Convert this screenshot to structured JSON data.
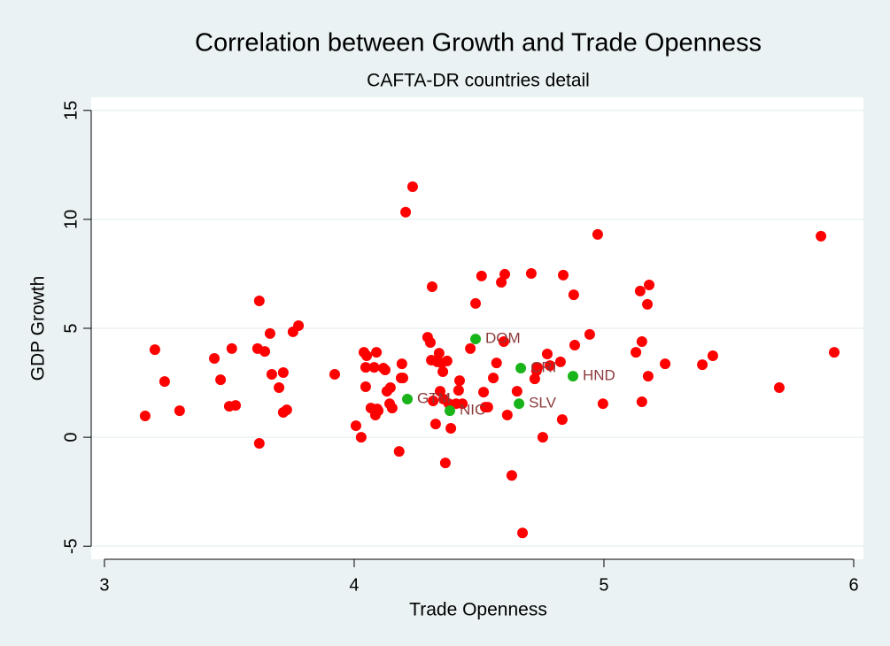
{
  "chart_data": {
    "type": "scatter",
    "title": "Correlation between Growth and Trade Openness",
    "subtitle": "CAFTA-DR countries detail",
    "x_label": "Trade Openness",
    "y_label": "GDP Growth",
    "xlim": [
      2.947,
      6.039
    ],
    "ylim": [
      -5.6,
      15.6
    ],
    "xticks": [
      3,
      4,
      5,
      6
    ],
    "yticks": [
      -5,
      0,
      5,
      10,
      15
    ],
    "grid": true,
    "series": [
      {
        "color": "#ff0000",
        "x": [
          3.163,
          3.202,
          3.241,
          3.301,
          3.44,
          3.465,
          3.5,
          3.51,
          3.525,
          3.613,
          3.62,
          3.62,
          3.642,
          3.663,
          3.67,
          3.699,
          3.716,
          3.716,
          3.73,
          3.755,
          3.777,
          3.922,
          4.007,
          4.028,
          4.039,
          4.046,
          4.05,
          4.046,
          4.067,
          4.08,
          4.085,
          4.089,
          4.092,
          4.096,
          4.117,
          4.124,
          4.131,
          4.142,
          4.145,
          4.152,
          4.18,
          4.188,
          4.191,
          4.195,
          4.206,
          4.234,
          4.294,
          4.305,
          4.309,
          4.312,
          4.316,
          4.326,
          4.333,
          4.34,
          4.344,
          4.35,
          4.355,
          4.358,
          4.365,
          4.372,
          4.379,
          4.387,
          4.408,
          4.418,
          4.422,
          4.433,
          4.465,
          4.486,
          4.51,
          4.518,
          4.525,
          4.535,
          4.557,
          4.57,
          4.589,
          4.599,
          4.603,
          4.613,
          4.631,
          4.652,
          4.674,
          4.709,
          4.723,
          4.73,
          4.734,
          4.755,
          4.773,
          4.784,
          4.826,
          4.833,
          4.837,
          4.879,
          4.883,
          4.996,
          4.943,
          4.975,
          5.128,
          5.145,
          5.152,
          5.152,
          5.174,
          5.177,
          5.181,
          5.245,
          5.394,
          5.436,
          5.702,
          5.869,
          5.922
        ],
        "values": [
          0.98,
          4.02,
          2.56,
          1.22,
          3.62,
          2.64,
          1.42,
          4.07,
          1.46,
          4.07,
          6.26,
          -0.28,
          3.94,
          4.76,
          2.89,
          2.28,
          2.97,
          1.14,
          1.26,
          4.84,
          5.12,
          2.89,
          0.53,
          0.0,
          3.9,
          2.32,
          3.74,
          3.21,
          1.34,
          3.21,
          1.02,
          3.9,
          1.3,
          1.22,
          3.17,
          3.09,
          2.11,
          1.54,
          2.28,
          1.34,
          -0.65,
          2.72,
          3.37,
          2.72,
          10.33,
          11.5,
          4.59,
          4.35,
          3.54,
          6.91,
          1.67,
          0.61,
          3.46,
          3.86,
          2.11,
          3.41,
          3.01,
          1.75,
          -1.18,
          3.5,
          1.54,
          0.41,
          1.54,
          2.15,
          2.6,
          1.54,
          4.07,
          6.14,
          7.4,
          2.07,
          1.38,
          1.38,
          2.72,
          3.41,
          7.11,
          4.39,
          7.48,
          1.02,
          -1.75,
          2.11,
          -4.39,
          7.52,
          2.68,
          3.05,
          3.21,
          0.0,
          3.82,
          3.29,
          3.46,
          0.81,
          7.44,
          6.54,
          4.23,
          1.54,
          4.72,
          9.31,
          3.9,
          6.71,
          4.39,
          1.63,
          6.1,
          2.8,
          6.99,
          3.37,
          3.33,
          3.74,
          2.28,
          9.23,
          3.9
        ]
      },
      {
        "color": "#19b419",
        "x": [
          4.486,
          4.667,
          4.876,
          4.213,
          4.383,
          4.66
        ],
        "values": [
          4.51,
          3.17,
          2.8,
          1.75,
          1.22,
          1.54
        ],
        "labels": [
          "DOM",
          "CRI",
          "HND",
          "GTM",
          "NIC",
          "SLV"
        ]
      }
    ]
  }
}
